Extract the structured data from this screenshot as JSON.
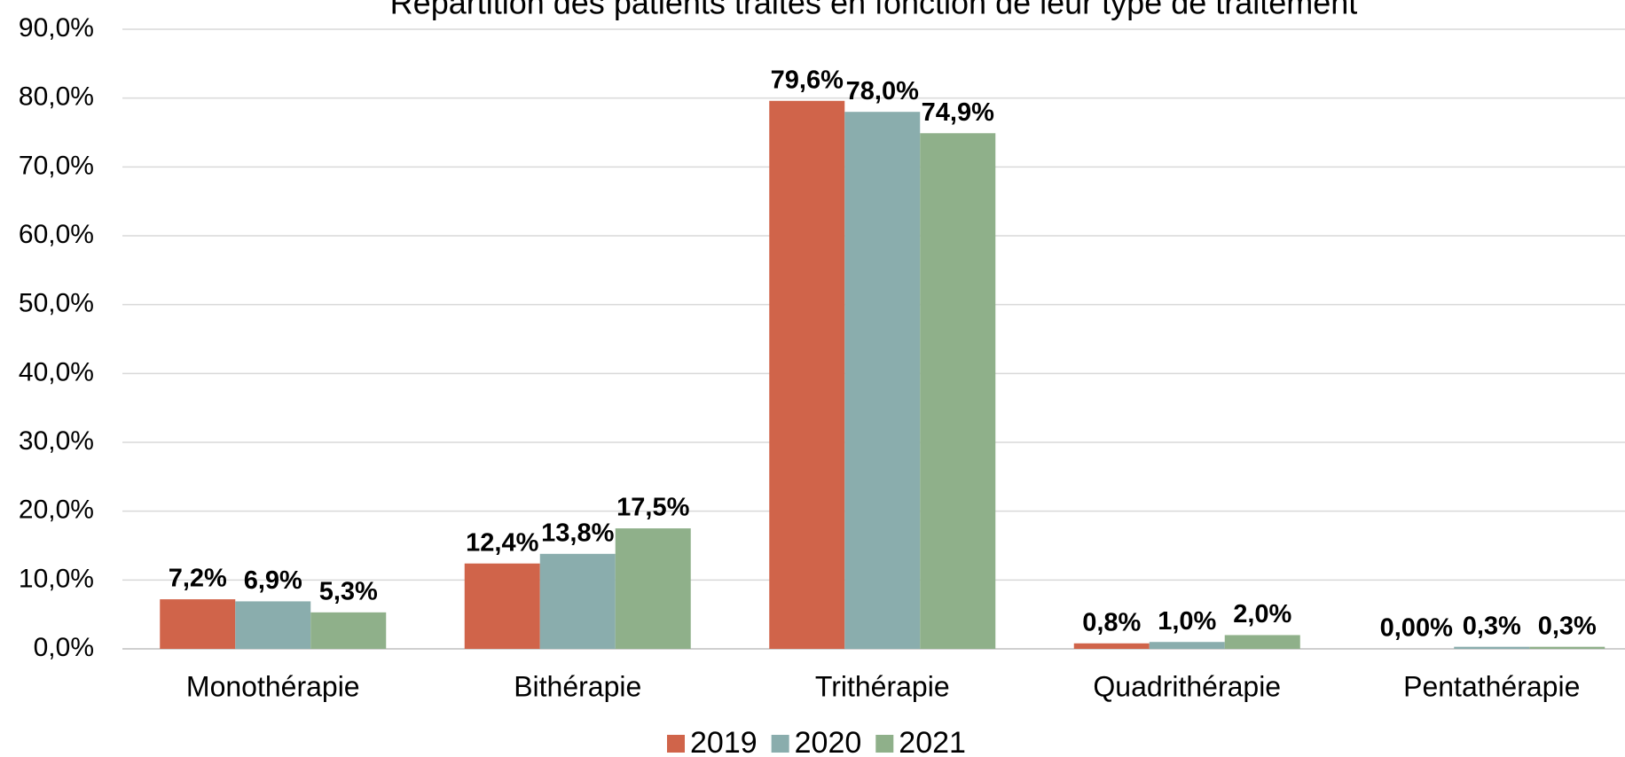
{
  "chart_data": {
    "type": "bar",
    "title": "Répartition des patients traités en fonction de leur type de traitement",
    "categories": [
      "Monothérapie",
      "Bithérapie",
      "Trithérapie",
      "Quadrithérapie",
      "Pentathérapie"
    ],
    "series": [
      {
        "name": "2019",
        "color": "#d0644a",
        "values": [
          7.2,
          12.4,
          79.6,
          0.8,
          0
        ],
        "value_labels": [
          "7,2%",
          "12,4%",
          "79,6%",
          "0,8%",
          "0,00%"
        ]
      },
      {
        "name": "2020",
        "color": "#8aadad",
        "values": [
          6.9,
          13.8,
          78.0,
          1.0,
          0.3
        ],
        "value_labels": [
          "6,9%",
          "13,8%",
          "78,0%",
          "1,0%",
          "0,3%"
        ]
      },
      {
        "name": "2021",
        "color": "#8fb08a",
        "values": [
          5.3,
          17.5,
          74.9,
          2.0,
          0.3
        ],
        "value_labels": [
          "5,3%",
          "17,5%",
          "74,9%",
          "2,0%",
          "0,3%"
        ]
      }
    ],
    "ylim": [
      0,
      90
    ],
    "yticks": [
      {
        "value": 0,
        "label": "0,0%"
      },
      {
        "value": 10,
        "label": "10,0%"
      },
      {
        "value": 20,
        "label": "20,0%"
      },
      {
        "value": 30,
        "label": "30,0%"
      },
      {
        "value": 40,
        "label": "40,0%"
      },
      {
        "value": 50,
        "label": "50,0%"
      },
      {
        "value": 60,
        "label": "60,0%"
      },
      {
        "value": 70,
        "label": "70,0%"
      },
      {
        "value": 80,
        "label": "80,0%"
      },
      {
        "value": 90,
        "label": "90,0%"
      }
    ],
    "grid": true,
    "legend": "bottom"
  }
}
